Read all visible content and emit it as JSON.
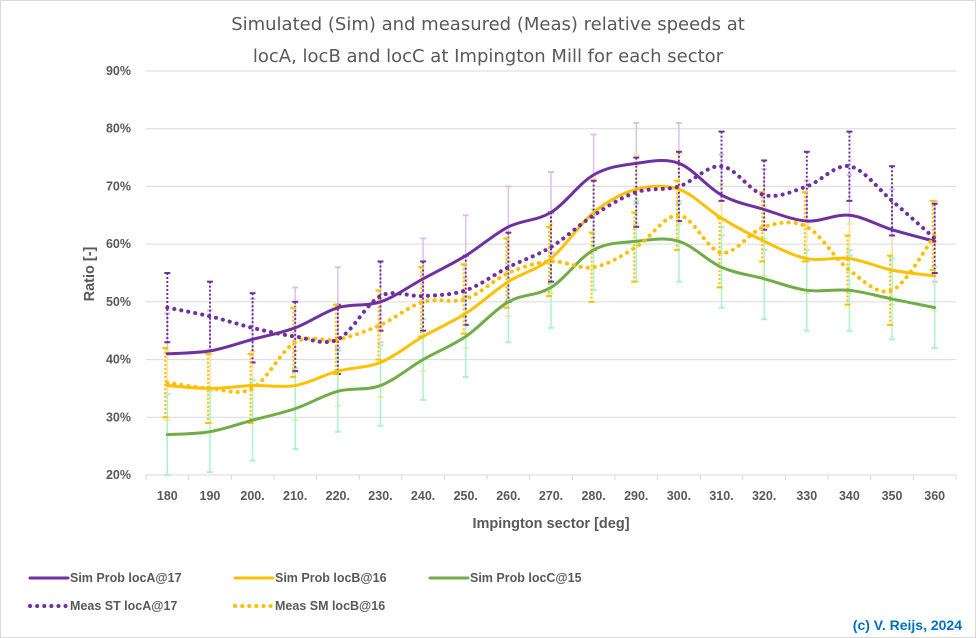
{
  "chart_data": {
    "type": "line",
    "title": "Simulated (Sim) and measured (Meas) relative speeds at locA, locB and locC at Impington Mill for each sector",
    "title_lines": [
      "Simulated (Sim) and measured (Meas) relative speeds at",
      "locA, locB and locC at Impington Mill for each sector"
    ],
    "xlabel": "Impington sector [deg]",
    "ylabel": "Ratio [-]",
    "categories": [
      "180",
      "190",
      "200.",
      "210.",
      "220.",
      "230.",
      "240.",
      "250.",
      "260.",
      "270.",
      "280.",
      "290.",
      "300.",
      "310.",
      "320.",
      "330",
      "340",
      "350",
      "360"
    ],
    "ylim": [
      20,
      90
    ],
    "yticks": [
      "20%",
      "30%",
      "40%",
      "50%",
      "60%",
      "70%",
      "80%",
      "90%"
    ],
    "grid": true,
    "legend_position": "bottom",
    "series": [
      {
        "name": "Sim Prob locA@17",
        "style": "solid",
        "color": "#7030A0",
        "error_color": "#D9C3EE",
        "error": 7,
        "values": [
          41,
          41.5,
          43.5,
          45.5,
          49,
          50,
          54,
          58,
          63,
          65.5,
          72,
          74,
          74,
          68.5,
          66,
          64,
          65,
          62.5,
          60.5
        ]
      },
      {
        "name": "Sim Prob locB@16",
        "style": "solid",
        "color": "#FFC000",
        "error_color": "#FFE699",
        "error": 6,
        "values": [
          35.5,
          35,
          35.5,
          35.5,
          38,
          39.5,
          44,
          48,
          53.5,
          57.5,
          65.5,
          69.5,
          69.5,
          64.5,
          60.5,
          57.5,
          57.5,
          55.5,
          54.5
        ]
      },
      {
        "name": "Sim Prob locC@15",
        "style": "solid",
        "color": "#70AD47",
        "error_color": "#A9F5C9",
        "error": 7,
        "values": [
          27,
          27.5,
          29.5,
          31.5,
          34.5,
          35.5,
          40,
          44,
          50,
          52.5,
          59,
          60.5,
          60.5,
          56,
          54,
          52,
          52,
          50.5,
          49
        ]
      },
      {
        "name": "Meas ST locA@17",
        "style": "dotted",
        "color": "#7030A0",
        "error_color": "#7030A0",
        "error": 6,
        "values": [
          49,
          47.5,
          45.5,
          44,
          43.5,
          51,
          51,
          52,
          56,
          59.5,
          65,
          69,
          70,
          73.5,
          68.5,
          70,
          73.5,
          67.5,
          61
        ]
      },
      {
        "name": "Meas SM locB@16",
        "style": "dotted",
        "color": "#FFC000",
        "error_color": "#FFC000",
        "error": 6,
        "values": [
          36,
          35,
          35,
          43,
          43.5,
          46,
          50,
          50.5,
          55,
          57,
          56,
          59.5,
          65,
          58.5,
          63,
          63,
          55.5,
          52,
          61.5
        ]
      }
    ]
  },
  "copyright": "(c) V. Reijs, 2024"
}
